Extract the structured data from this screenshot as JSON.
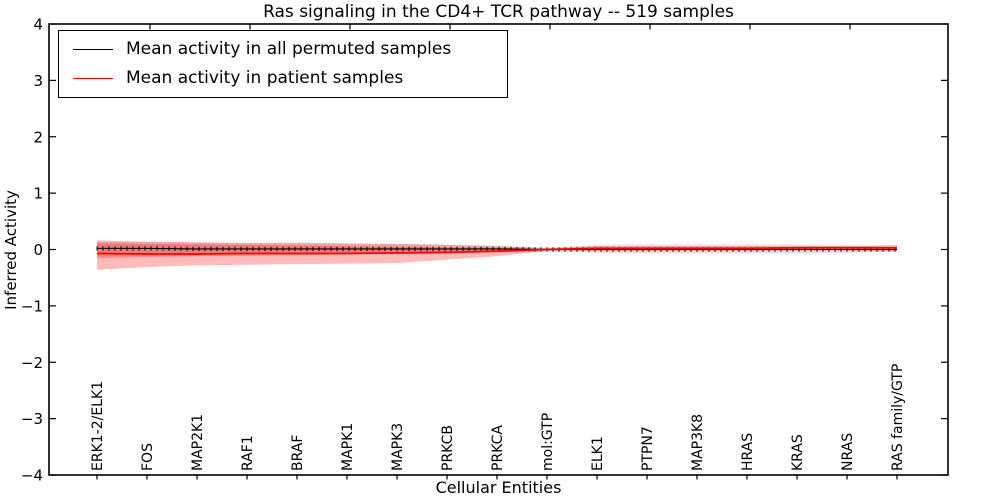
{
  "figure": {
    "title": "Ras signaling in the CD4+ TCR pathway -- 519 samples",
    "xlabel": "Cellular Entities",
    "ylabel": "Inferred Activity"
  },
  "legend": {
    "position": "upper left",
    "items": [
      {
        "label": "Mean activity in all permuted samples",
        "color": "#000000"
      },
      {
        "label": "Mean activity in patient samples",
        "color": "#ff0000"
      }
    ]
  },
  "chart_data": {
    "type": "line",
    "title": "Ras signaling in the CD4+ TCR pathway -- 519 samples",
    "xlabel": "Cellular Entities",
    "ylabel": "Inferred Activity",
    "ylim": [
      -4,
      4
    ],
    "ytick_values": [
      4,
      3,
      2,
      1,
      0,
      -1,
      -2,
      -3,
      -4
    ],
    "ytick_labels": [
      "4",
      "3",
      "2",
      "1",
      "0",
      "−1",
      "−2",
      "−3",
      "−4"
    ],
    "grid": false,
    "legend_position": "upper left",
    "categories": [
      "ERK1-2/ELK1",
      "FOS",
      "MAP2K1",
      "RAF1",
      "BRAF",
      "MAPK1",
      "MAPK3",
      "PRKCB",
      "PRKCA",
      "mol:GTP",
      "ELK1",
      "PTPN7",
      "MAP3K8",
      "HRAS",
      "KRAS",
      "NRAS",
      "RAS family/GTP"
    ],
    "series": [
      {
        "name": "Mean activity in all permuted samples",
        "color": "#000000",
        "marker": "tick",
        "values": [
          0.02,
          0.02,
          0.01,
          0.01,
          0.01,
          0.01,
          0.01,
          0.01,
          0.01,
          0.0,
          0.0,
          0.0,
          0.0,
          0.0,
          0.0,
          0.0,
          0.0
        ]
      },
      {
        "name": "Mean activity in patient samples",
        "color": "#ff0000",
        "marker": "none",
        "values": [
          -0.07,
          -0.08,
          -0.08,
          -0.07,
          -0.07,
          -0.07,
          -0.06,
          -0.05,
          -0.03,
          0.0,
          0.02,
          0.02,
          0.02,
          0.02,
          0.03,
          0.03,
          0.03
        ]
      }
    ],
    "bands": [
      {
        "name": "permuted-samples-band",
        "color": "rgba(128,128,128,0.22)",
        "hi": [
          0.14,
          0.13,
          0.12,
          0.11,
          0.11,
          0.1,
          0.1,
          0.09,
          0.07,
          0.03,
          0.08,
          0.09,
          0.09,
          0.09,
          0.09,
          0.08,
          0.04
        ],
        "lo": [
          -0.11,
          -0.1,
          -0.09,
          -0.09,
          -0.08,
          -0.08,
          -0.07,
          -0.07,
          -0.05,
          -0.03,
          -0.06,
          -0.07,
          -0.07,
          -0.07,
          -0.07,
          -0.06,
          -0.03
        ]
      },
      {
        "name": "patient-samples-band-outer",
        "color": "rgba(255,0,0,0.27)",
        "hi": [
          0.16,
          0.14,
          0.13,
          0.12,
          0.12,
          0.11,
          0.1,
          0.08,
          0.06,
          0.02,
          0.06,
          0.06,
          0.06,
          0.06,
          0.06,
          0.06,
          0.08
        ],
        "lo": [
          -0.36,
          -0.31,
          -0.28,
          -0.27,
          -0.26,
          -0.25,
          -0.24,
          -0.18,
          -0.12,
          -0.02,
          -0.03,
          -0.03,
          -0.03,
          -0.03,
          -0.02,
          -0.02,
          -0.04
        ]
      },
      {
        "name": "patient-samples-band-inner",
        "color": "rgba(255,0,0,0.27)",
        "hi": [
          0.11,
          0.1,
          0.09,
          0.08,
          0.07,
          0.06,
          0.05,
          0.04,
          0.03,
          0.01,
          0.04,
          0.04,
          0.04,
          0.04,
          0.05,
          0.05,
          0.05
        ],
        "lo": [
          -0.15,
          -0.13,
          -0.12,
          -0.11,
          -0.1,
          -0.09,
          -0.08,
          -0.07,
          -0.05,
          -0.01,
          -0.01,
          0.0,
          0.0,
          0.0,
          0.0,
          0.01,
          0.0
        ]
      }
    ]
  }
}
